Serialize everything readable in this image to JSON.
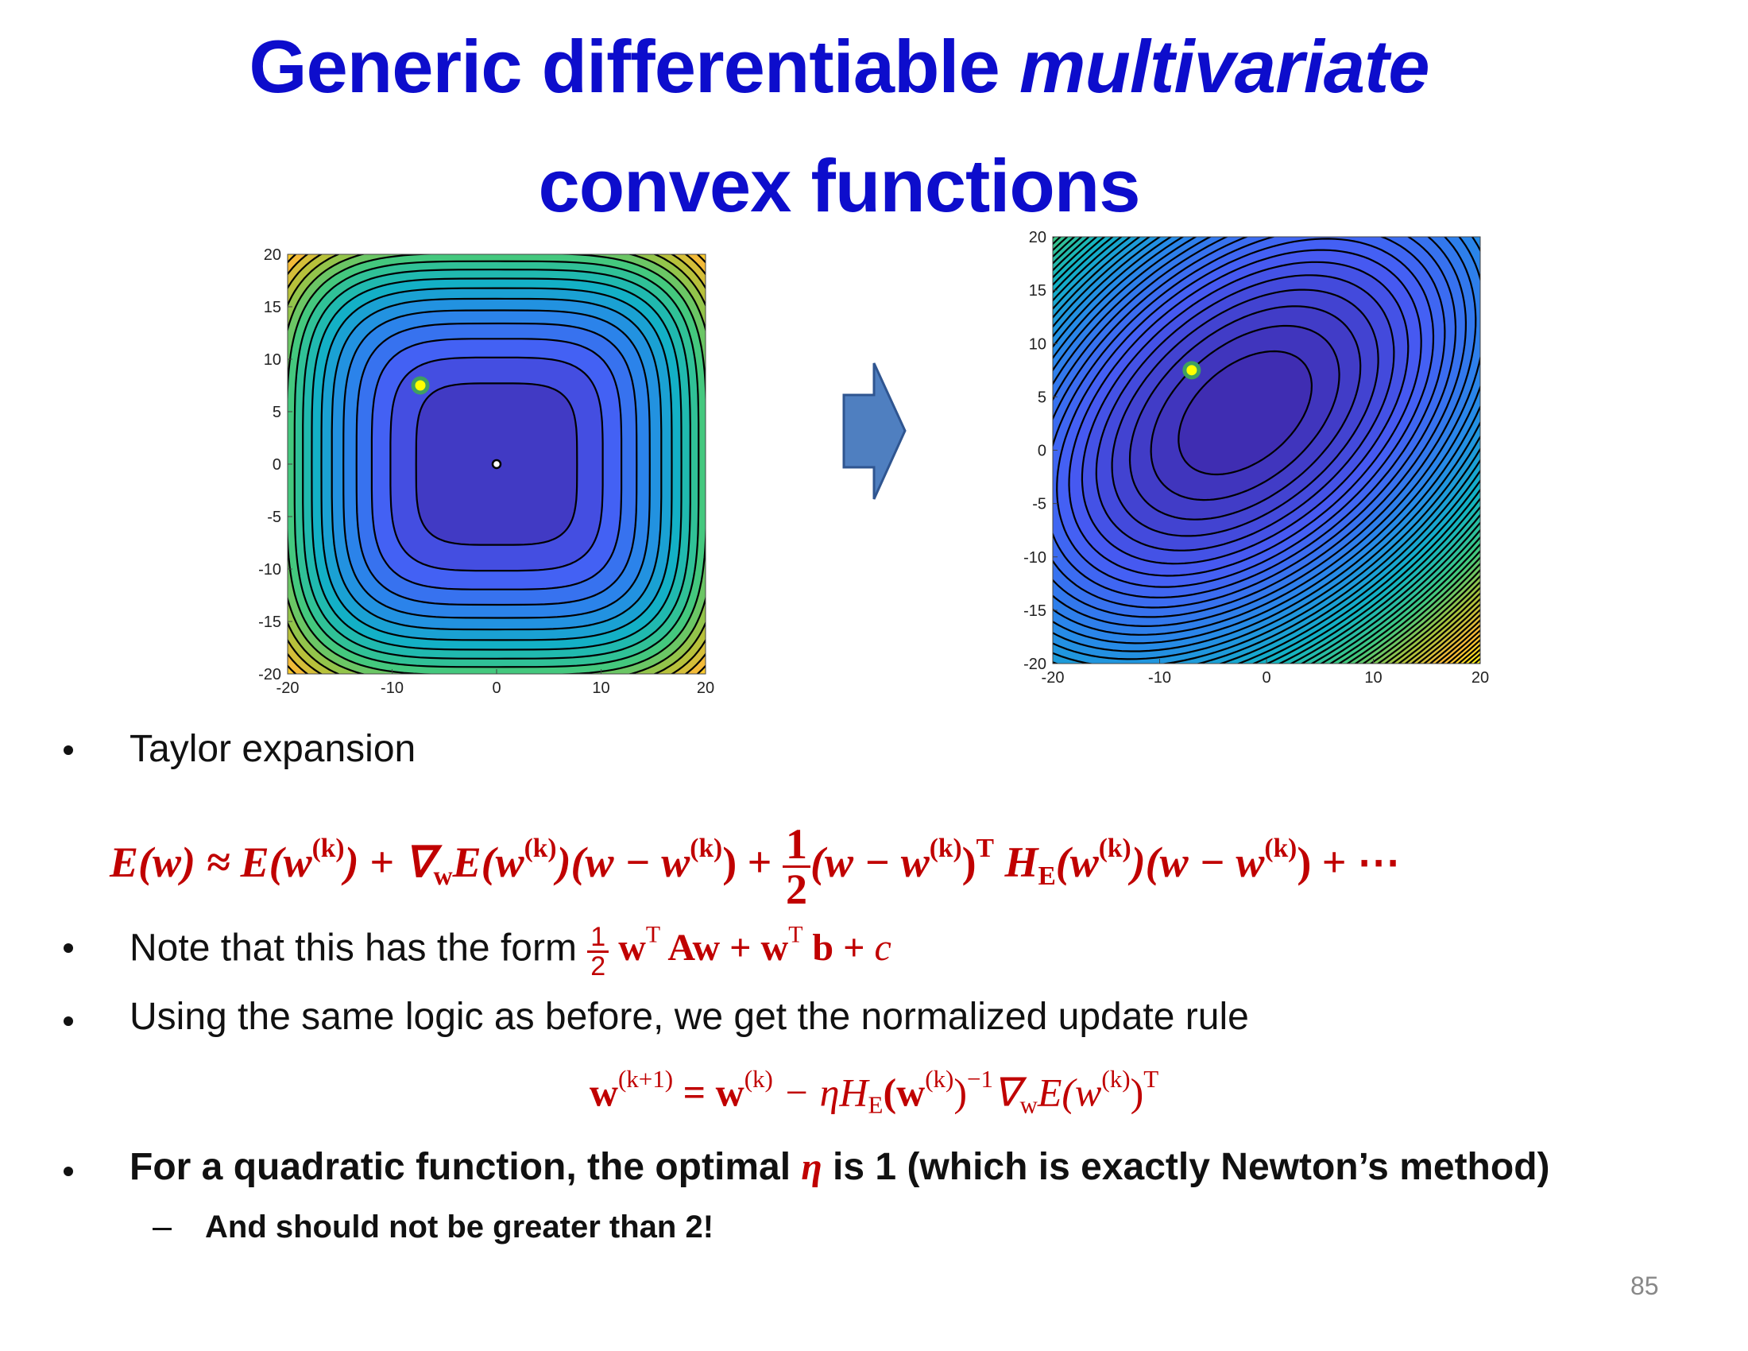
{
  "title": {
    "line1": "Generic differentiable ",
    "line1_italic": "multivariate",
    "line2": "convex functions"
  },
  "plots": [
    {
      "xlim": [
        -20,
        20
      ],
      "ylim": [
        -20,
        20
      ],
      "xticks": [
        -20,
        -10,
        0,
        10,
        20
      ],
      "yticks": [
        20,
        15,
        10,
        5,
        0,
        -5,
        -10,
        -15,
        -20
      ],
      "points": [
        {
          "x": -7.3,
          "y": 7.5,
          "color": "#ffff00"
        },
        {
          "x": 0,
          "y": 0,
          "color": "#ffffff"
        }
      ]
    },
    {
      "xlim": [
        -20,
        20
      ],
      "ylim": [
        -20,
        20
      ],
      "xticks": [
        -20,
        -10,
        0,
        10,
        20
      ],
      "yticks": [
        20,
        15,
        10,
        5,
        0,
        -5,
        -10,
        -15,
        -20
      ],
      "points": [
        {
          "x": -7,
          "y": 7.5,
          "color": "#ffff00"
        }
      ]
    }
  ],
  "bullets": {
    "taylor": "Taylor expansion",
    "taylor_eq": [
      "E(w) ≈ E(w",
      "(k)",
      ") + ∇",
      "w",
      "E(w",
      "(k)",
      ")(w − w",
      "(k)",
      ") + ",
      "1",
      "2",
      "(w − w",
      "(k)",
      ")",
      "T",
      " H",
      "E",
      "(w",
      "(k)",
      ")(w − w",
      "(k)",
      ") + ⋯"
    ],
    "note": "Note that this has the form ",
    "note_eq": [
      "1",
      "2",
      "w",
      "T",
      " Aw + w",
      "T",
      "b + ",
      "c"
    ],
    "logic": "Using the same logic as before, we get the normalized update rule",
    "update_eq": [
      "w",
      "(k+1)",
      " = w",
      "(k)",
      " − ηH",
      "E",
      "(w",
      "(k)",
      ")",
      "−1",
      "∇",
      "w",
      "E(w",
      "(k)",
      ")",
      "T"
    ],
    "quad": [
      "For a quadratic function, the optimal ",
      "η",
      " is 1 (which is exactly Newton’s method)"
    ],
    "sub": "And should not be greater than 2!"
  },
  "page_number": "85"
}
